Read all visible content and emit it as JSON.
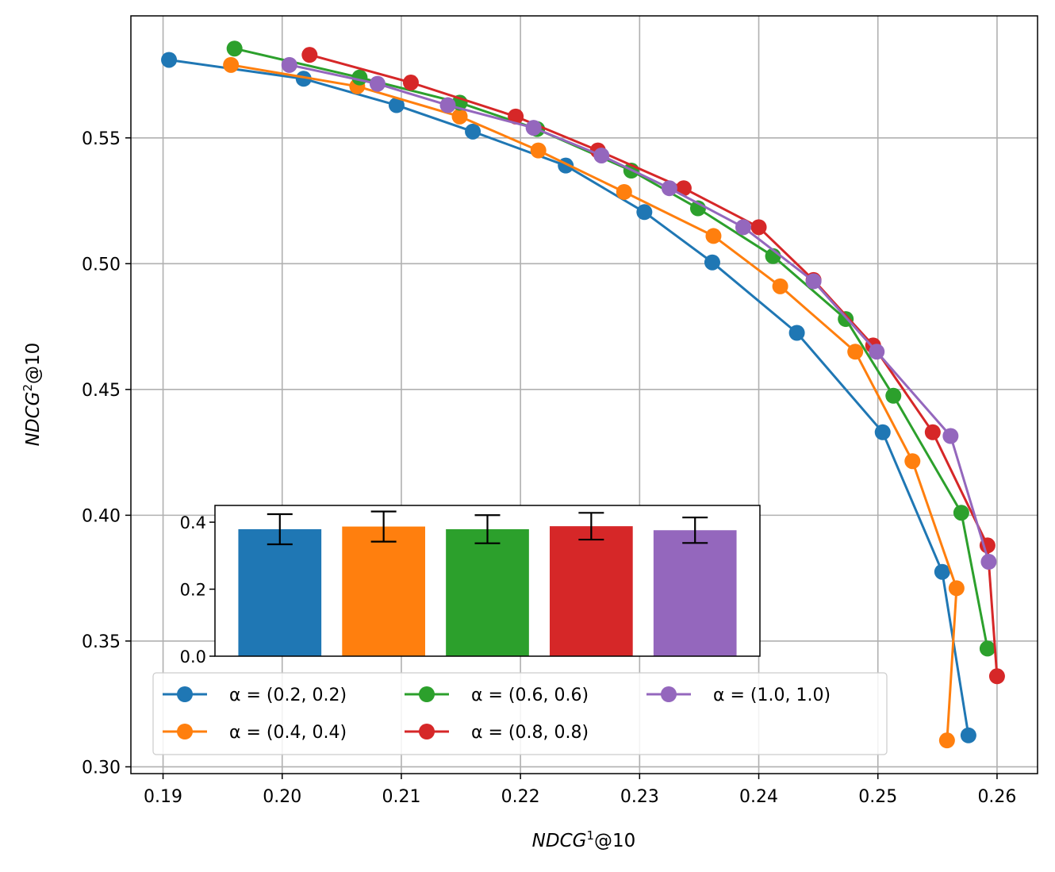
{
  "chart_data": {
    "type": "line",
    "title": "",
    "xlabel": "NDCG",
    "xlabel_sup": "1",
    "xlabel_suffix": "@10",
    "ylabel": "NDCG",
    "ylabel_sup": "2",
    "ylabel_suffix": "@10",
    "xlim": [
      0.1873,
      0.2634
    ],
    "ylim": [
      0.2973,
      0.5985
    ],
    "grid": true,
    "x_ticks": [
      0.19,
      0.2,
      0.21,
      0.22,
      0.23,
      0.24,
      0.25,
      0.26
    ],
    "x_tick_labels": [
      "0.19",
      "0.20",
      "0.21",
      "0.22",
      "0.23",
      "0.24",
      "0.25",
      "0.26"
    ],
    "y_ticks": [
      0.3,
      0.35,
      0.4,
      0.45,
      0.5,
      0.55
    ],
    "y_tick_labels": [
      "0.30",
      "0.35",
      "0.40",
      "0.45",
      "0.50",
      "0.55"
    ],
    "legend_location": "lower-left",
    "series": [
      {
        "name": "α = (0.2, 0.2)",
        "color": "#1f77b4",
        "x": [
          0.1905,
          0.2018,
          0.2096,
          0.216,
          0.2238,
          0.2304,
          0.2361,
          0.2432,
          0.2504,
          0.2554,
          0.2576
        ],
        "y": [
          0.581,
          0.5735,
          0.563,
          0.5525,
          0.539,
          0.5205,
          0.5005,
          0.4725,
          0.433,
          0.3775,
          0.3125
        ]
      },
      {
        "name": "α = (0.4, 0.4)",
        "color": "#ff7f0e",
        "x": [
          0.1957,
          0.2063,
          0.2149,
          0.2215,
          0.2287,
          0.2362,
          0.2418,
          0.2481,
          0.2529,
          0.2566,
          0.2558
        ],
        "y": [
          0.579,
          0.5705,
          0.5585,
          0.545,
          0.5285,
          0.511,
          0.491,
          0.465,
          0.4215,
          0.371,
          0.3105
        ]
      },
      {
        "name": "α = (0.6, 0.6)",
        "color": "#2ca02c",
        "x": [
          0.196,
          0.2065,
          0.2149,
          0.2214,
          0.2293,
          0.2349,
          0.2412,
          0.2473,
          0.2513,
          0.257,
          0.2592
        ],
        "y": [
          0.5855,
          0.574,
          0.564,
          0.5535,
          0.537,
          0.522,
          0.503,
          0.478,
          0.4475,
          0.401,
          0.347
        ]
      },
      {
        "name": "α = (0.8, 0.8)",
        "color": "#d62728",
        "x": [
          0.2023,
          0.2108,
          0.2196,
          0.2265,
          0.2337,
          0.24,
          0.2446,
          0.2496,
          0.2546,
          0.2592,
          0.26
        ],
        "y": [
          0.583,
          0.572,
          0.5585,
          0.545,
          0.53,
          0.5145,
          0.4935,
          0.4675,
          0.433,
          0.388,
          0.336
        ]
      },
      {
        "name": "α = (1.0, 1.0)",
        "color": "#9467bd",
        "x": [
          0.2006,
          0.208,
          0.2139,
          0.2211,
          0.2268,
          0.2325,
          0.2387,
          0.2446,
          0.2499,
          0.2561,
          0.2593
        ],
        "y": [
          0.579,
          0.5715,
          0.563,
          0.554,
          0.543,
          0.53,
          0.5145,
          0.493,
          0.465,
          0.4315,
          0.3815
        ]
      }
    ],
    "inset": {
      "type": "bar",
      "ylim": [
        0,
        0.45
      ],
      "y_ticks": [
        0.0,
        0.2,
        0.4
      ],
      "y_tick_labels": [
        "0.0",
        "0.2",
        "0.4"
      ],
      "values": [
        0.379,
        0.387,
        0.379,
        0.388,
        0.376
      ],
      "errors": [
        0.045,
        0.045,
        0.042,
        0.04,
        0.038
      ],
      "colors": [
        "#1f77b4",
        "#ff7f0e",
        "#2ca02c",
        "#d62728",
        "#9467bd"
      ]
    }
  }
}
